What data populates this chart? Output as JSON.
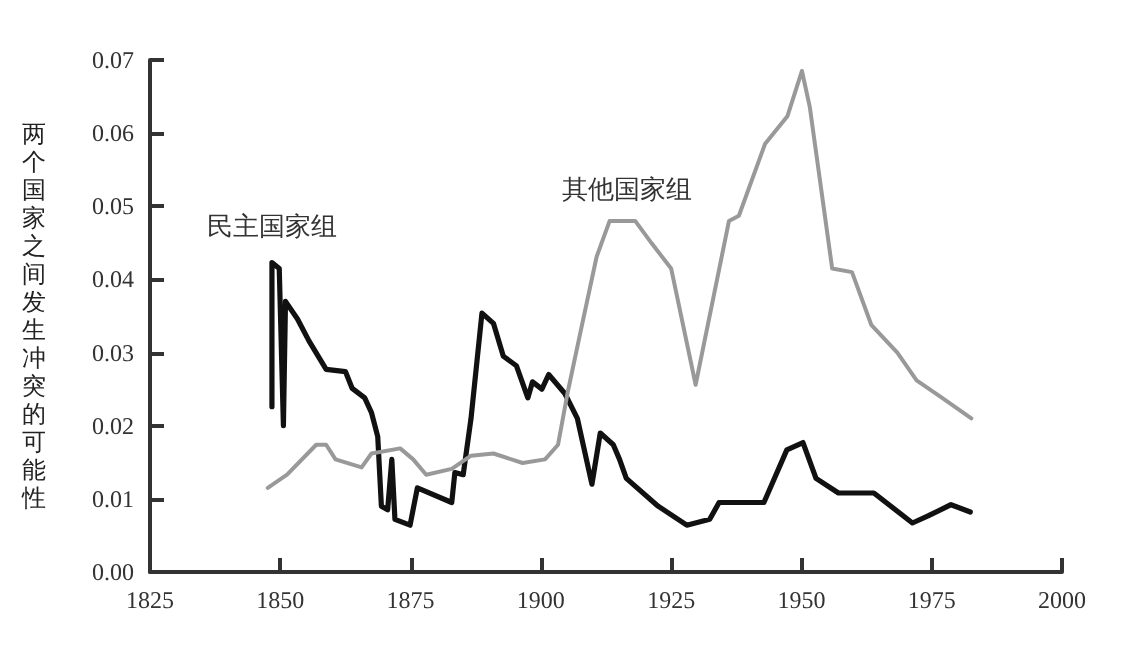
{
  "chart_data": {
    "type": "line",
    "ylabel": "两个国家之间发生冲突的可能性",
    "xlim": [
      1825,
      2000
    ],
    "xticks": [
      1825,
      1850,
      1875,
      1900,
      1925,
      1950,
      1975,
      2000
    ],
    "ylim": [
      0,
      0.07
    ],
    "yticks": [
      {
        "value": 0,
        "label": "0.00"
      },
      {
        "value": 0.01,
        "label": "0.01"
      },
      {
        "value": 0.02,
        "label": "0.02"
      },
      {
        "value": 0.03,
        "label": "0.03"
      },
      {
        "value": 0.04,
        "label": "0.04"
      },
      {
        "value": 0.05,
        "label": "0.05"
      },
      {
        "value": 0.06,
        "label": "0.06"
      },
      {
        "value": 0.07,
        "label": "0.07"
      }
    ],
    "grid": false,
    "marker": "none",
    "line_style": "solid",
    "series": [
      {
        "name": "民主国家组",
        "color": "#111111",
        "x": [
          1848.4,
          1848.4,
          1849.8,
          1850.6,
          1851,
          1853.3,
          1855.5,
          1858.8,
          1862.5,
          1863.8,
          1866.2,
          1867.5,
          1868.7,
          1869.4,
          1870.6,
          1871.4,
          1872,
          1874.9,
          1876.3,
          1882.9,
          1883.5,
          1885.1,
          1886.6,
          1888.7,
          1890.9,
          1892.8,
          1895.3,
          1897.5,
          1898.4,
          1900.2,
          1901.5,
          1904.6,
          1907,
          1909.8,
          1911.4,
          1913.9,
          1915.1,
          1916.4,
          1922.5,
          1928,
          1932.4,
          1934.2,
          1942.8,
          1947.2,
          1950.3,
          1952.8,
          1957.1,
          1963.9,
          1971.3,
          1974.4,
          1978.7,
          1982.4
        ],
        "values": [
          0.0226,
          0.0423,
          0.0415,
          0.02,
          0.037,
          0.0346,
          0.0316,
          0.0277,
          0.0274,
          0.0251,
          0.0238,
          0.0218,
          0.0185,
          0.009,
          0.0085,
          0.0154,
          0.0072,
          0.0064,
          0.0115,
          0.0095,
          0.0136,
          0.0133,
          0.021,
          0.0354,
          0.034,
          0.0295,
          0.0282,
          0.0238,
          0.026,
          0.025,
          0.027,
          0.0244,
          0.021,
          0.012,
          0.019,
          0.0174,
          0.0154,
          0.0128,
          0.009,
          0.0064,
          0.0072,
          0.0095,
          0.0095,
          0.0167,
          0.0177,
          0.0128,
          0.0108,
          0.0108,
          0.0067,
          0.0077,
          0.0092,
          0.0082
        ]
      },
      {
        "name": "其他国家组",
        "color": "#999999",
        "x": [
          1847.6,
          1851.3,
          1856.9,
          1858.8,
          1860.6,
          1865.6,
          1867.5,
          1873,
          1875.5,
          1878,
          1882.9,
          1886.6,
          1890.9,
          1896.5,
          1900.8,
          1903.3,
          1905.1,
          1907.6,
          1910.7,
          1913.2,
          1918.1,
          1921.3,
          1925,
          1929.7,
          1936.1,
          1938,
          1943,
          1947.3,
          1950.1,
          1951.6,
          1955.9,
          1959.7,
          1963.4,
          1968.4,
          1972.1,
          1977,
          1982.6
        ],
        "values": [
          0.0115,
          0.0133,
          0.0174,
          0.0174,
          0.0154,
          0.0143,
          0.0162,
          0.0169,
          0.0154,
          0.0133,
          0.0141,
          0.0159,
          0.0162,
          0.0149,
          0.0154,
          0.0174,
          0.0244,
          0.0328,
          0.0431,
          0.048,
          0.048,
          0.0449,
          0.0415,
          0.0256,
          0.048,
          0.0487,
          0.0585,
          0.0623,
          0.0685,
          0.0636,
          0.0415,
          0.041,
          0.0338,
          0.03,
          0.0262,
          0.0238,
          0.021
        ]
      }
    ]
  }
}
